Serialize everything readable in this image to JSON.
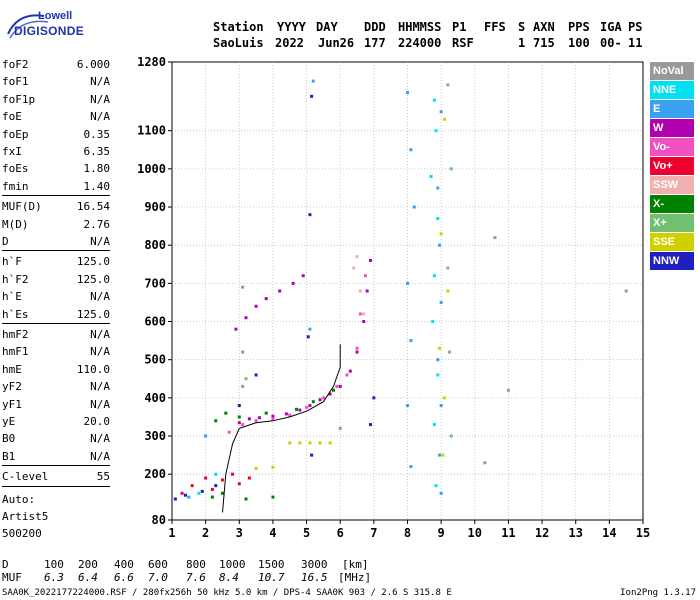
{
  "logo": {
    "line1": "Lowell",
    "line2": "DIGISONDE"
  },
  "header": {
    "row1": [
      "Station",
      "YYYY",
      "DAY",
      "DDD",
      "HHMMSS",
      "P1",
      "FFS",
      "S",
      "AXN",
      "PPS",
      "IGA",
      "PS"
    ],
    "row2": [
      "SaoLuis",
      "2022",
      "Jun26",
      "177",
      "224000",
      "RSF",
      "1",
      "715",
      "100",
      "00-",
      "11"
    ]
  },
  "params_group1": [
    {
      "k": "foF2",
      "v": "6.000"
    },
    {
      "k": "foF1",
      "v": "N/A"
    },
    {
      "k": "foF1p",
      "v": "N/A"
    },
    {
      "k": "foE",
      "v": "N/A"
    },
    {
      "k": "foEp",
      "v": "0.35"
    },
    {
      "k": "fxI",
      "v": "6.35"
    },
    {
      "k": "foEs",
      "v": "1.80"
    },
    {
      "k": "fmin",
      "v": "1.40"
    }
  ],
  "params_group2": [
    {
      "k": "MUF(D)",
      "v": "16.54"
    },
    {
      "k": "M(D)",
      "v": "2.76"
    },
    {
      "k": "D",
      "v": "N/A"
    }
  ],
  "params_group3": [
    {
      "k": "h`F",
      "v": "125.0"
    },
    {
      "k": "h`F2",
      "v": "125.0"
    },
    {
      "k": "h`E",
      "v": "N/A"
    },
    {
      "k": "h`Es",
      "v": "125.0"
    }
  ],
  "params_group4": [
    {
      "k": "hmF2",
      "v": "N/A"
    },
    {
      "k": "hmF1",
      "v": "N/A"
    },
    {
      "k": "hmE",
      "v": "110.0"
    },
    {
      "k": "yF2",
      "v": "N/A"
    },
    {
      "k": "yF1",
      "v": "N/A"
    },
    {
      "k": "yE",
      "v": "20.0"
    },
    {
      "k": "B0",
      "v": "N/A"
    },
    {
      "k": "B1",
      "v": "N/A"
    }
  ],
  "clevel": {
    "k": "C-level",
    "v": "55"
  },
  "auto": {
    "line1": "Auto:",
    "line2": "Artist5",
    "line3": "500200"
  },
  "legend": [
    {
      "label": "NoVal",
      "color": "#999999"
    },
    {
      "label": "NNE",
      "color": "#00e0f0"
    },
    {
      "label": "E",
      "color": "#3aa0f0"
    },
    {
      "label": "W",
      "color": "#b000b0"
    },
    {
      "label": "Vo-",
      "color": "#f050c0"
    },
    {
      "label": "Vo+",
      "color": "#f00030"
    },
    {
      "label": "SSW",
      "color": "#f0b0b0"
    },
    {
      "label": "X-",
      "color": "#008000"
    },
    {
      "label": "X+",
      "color": "#70c070"
    },
    {
      "label": "SSE",
      "color": "#d0d000"
    },
    {
      "label": "NNW",
      "color": "#2020c0"
    }
  ],
  "muf_table": {
    "d_label": "D",
    "d_values": [
      "100",
      "200",
      "400",
      "600",
      "800",
      "1000",
      "1500",
      "3000"
    ],
    "d_unit": "[km]",
    "muf_label": "MUF",
    "muf_values": [
      "6.3",
      "6.4",
      "6.6",
      "7.0",
      "7.6",
      "8.4",
      "10.7",
      "16.5"
    ],
    "muf_unit": "[MHz]"
  },
  "footer": {
    "left": "SAA0K_2022177224000.RSF / 280fx256h 50 kHz 5.0 km / DPS-4 SAA0K 903 / 2.6 S 315.8 E",
    "right": "Ion2Png 1.3.17"
  },
  "chart_data": {
    "type": "scatter",
    "xlim": [
      1,
      15
    ],
    "ylim": [
      80,
      1280
    ],
    "xticks": [
      1,
      2,
      3,
      4,
      5,
      6,
      7,
      8,
      9,
      10,
      11,
      12,
      13,
      14,
      15
    ],
    "yticks": [
      80,
      200,
      300,
      400,
      500,
      600,
      700,
      800,
      900,
      1000,
      1100,
      1280
    ],
    "grid": true,
    "legend_placement": "right",
    "series": [
      {
        "color": "#b000b0",
        "points": [
          [
            3.0,
            335
          ],
          [
            3.3,
            345
          ],
          [
            3.6,
            348
          ],
          [
            4.0,
            352
          ],
          [
            4.4,
            358
          ],
          [
            4.8,
            368
          ],
          [
            5.1,
            380
          ],
          [
            5.4,
            395
          ],
          [
            5.7,
            410
          ],
          [
            6.0,
            430
          ],
          [
            6.3,
            470
          ],
          [
            6.5,
            520
          ],
          [
            6.7,
            600
          ],
          [
            6.8,
            680
          ],
          [
            6.9,
            760
          ]
        ]
      },
      {
        "color": "#b000b0",
        "points": [
          [
            2.9,
            580
          ],
          [
            3.2,
            610
          ],
          [
            3.5,
            640
          ],
          [
            3.8,
            660
          ],
          [
            4.2,
            680
          ],
          [
            4.6,
            700
          ],
          [
            4.9,
            720
          ]
        ]
      },
      {
        "color": "#f050c0",
        "points": [
          [
            2.7,
            310
          ],
          [
            3.1,
            330
          ],
          [
            3.5,
            340
          ],
          [
            4.0,
            345
          ],
          [
            4.5,
            355
          ],
          [
            5.0,
            375
          ],
          [
            5.5,
            400
          ],
          [
            5.9,
            430
          ],
          [
            6.2,
            460
          ],
          [
            6.5,
            530
          ],
          [
            6.6,
            620
          ],
          [
            6.75,
            720
          ]
        ]
      },
      {
        "color": "#008000",
        "points": [
          [
            2.3,
            340
          ],
          [
            2.6,
            360
          ],
          [
            3.0,
            350
          ],
          [
            3.8,
            360
          ],
          [
            4.7,
            370
          ],
          [
            5.2,
            390
          ],
          [
            5.8,
            420
          ],
          [
            2.2,
            140
          ],
          [
            2.5,
            150
          ],
          [
            3.2,
            135
          ],
          [
            4.0,
            140
          ]
        ]
      },
      {
        "color": "#f00030",
        "points": [
          [
            1.3,
            150
          ],
          [
            1.6,
            170
          ],
          [
            2.0,
            190
          ],
          [
            2.2,
            160
          ],
          [
            2.5,
            185
          ],
          [
            2.8,
            200
          ],
          [
            3.0,
            175
          ],
          [
            3.3,
            190
          ]
        ]
      },
      {
        "color": "#3aa0f0",
        "points": [
          [
            8.0,
            1200
          ],
          [
            8.1,
            1050
          ],
          [
            8.2,
            900
          ],
          [
            8.0,
            700
          ],
          [
            8.1,
            550
          ],
          [
            8.0,
            380
          ],
          [
            8.1,
            220
          ],
          [
            9.0,
            1150
          ],
          [
            8.9,
            950
          ],
          [
            8.95,
            800
          ],
          [
            9.0,
            650
          ],
          [
            8.9,
            500
          ],
          [
            9.0,
            380
          ],
          [
            8.95,
            250
          ],
          [
            9.0,
            150
          ],
          [
            1.5,
            140
          ],
          [
            2.0,
            300
          ],
          [
            5.2,
            1230
          ],
          [
            5.1,
            580
          ]
        ]
      },
      {
        "color": "#00e0f0",
        "points": [
          [
            8.8,
            1180
          ],
          [
            8.85,
            1100
          ],
          [
            8.7,
            980
          ],
          [
            8.9,
            870
          ],
          [
            8.8,
            720
          ],
          [
            8.75,
            600
          ],
          [
            8.9,
            460
          ],
          [
            8.8,
            330
          ],
          [
            8.85,
            170
          ],
          [
            1.8,
            150
          ],
          [
            2.3,
            200
          ]
        ]
      },
      {
        "color": "#d0d000",
        "points": [
          [
            4.5,
            282
          ],
          [
            4.8,
            282
          ],
          [
            5.1,
            282
          ],
          [
            5.4,
            282
          ],
          [
            5.7,
            282
          ],
          [
            3.5,
            215
          ],
          [
            4.0,
            218
          ],
          [
            9.1,
            1130
          ],
          [
            9.0,
            830
          ],
          [
            9.2,
            680
          ],
          [
            8.95,
            530
          ],
          [
            9.1,
            400
          ],
          [
            9.05,
            250
          ]
        ]
      },
      {
        "color": "#2020c0",
        "points": [
          [
            1.1,
            135
          ],
          [
            1.4,
            145
          ],
          [
            1.9,
            155
          ],
          [
            2.3,
            170
          ],
          [
            3.0,
            380
          ],
          [
            3.5,
            460
          ],
          [
            5.15,
            1190
          ],
          [
            5.1,
            880
          ],
          [
            5.05,
            560
          ],
          [
            5.15,
            250
          ],
          [
            6.9,
            330
          ],
          [
            7.0,
            400
          ]
        ]
      },
      {
        "color": "#f0b0b0",
        "points": [
          [
            6.4,
            740
          ],
          [
            6.5,
            770
          ],
          [
            6.6,
            680
          ],
          [
            6.7,
            620
          ]
        ]
      },
      {
        "color": "#70c070",
        "points": [
          [
            9.2,
            1220
          ],
          [
            9.3,
            1000
          ],
          [
            9.2,
            740
          ],
          [
            9.25,
            520
          ],
          [
            9.3,
            300
          ],
          [
            3.2,
            450
          ]
        ]
      },
      {
        "color": "#999999",
        "points": [
          [
            3.1,
            690
          ],
          [
            3.1,
            520
          ],
          [
            3.1,
            430
          ],
          [
            6.0,
            320
          ],
          [
            10.6,
            820
          ],
          [
            14.5,
            680
          ],
          [
            11.0,
            420
          ],
          [
            10.3,
            230
          ]
        ]
      }
    ],
    "trace": [
      [
        2.5,
        100
      ],
      [
        2.6,
        200
      ],
      [
        2.8,
        280
      ],
      [
        3.0,
        320
      ],
      [
        3.5,
        335
      ],
      [
        4.0,
        340
      ],
      [
        4.5,
        350
      ],
      [
        5.0,
        365
      ],
      [
        5.5,
        390
      ],
      [
        5.8,
        430
      ],
      [
        6.0,
        480
      ],
      [
        6.0,
        540
      ]
    ]
  }
}
